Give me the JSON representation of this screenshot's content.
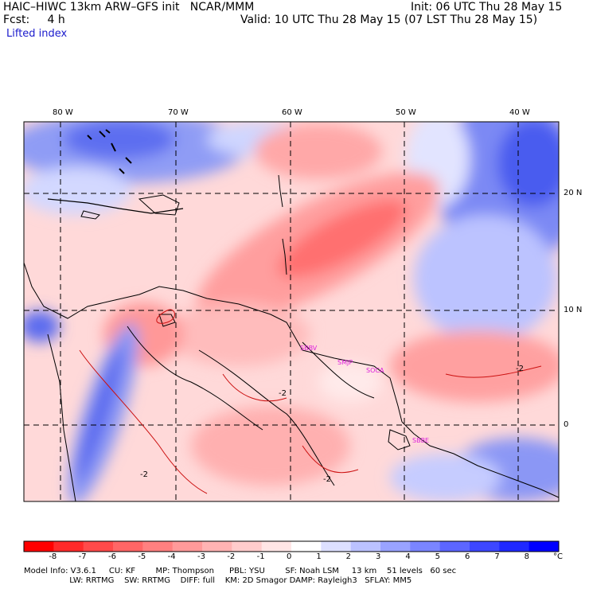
{
  "header": {
    "title": "HAIC–HIWC 13km ARW–GFS init   NCAR/MMM",
    "init": "Init: 06 UTC Thu 28 May 15",
    "fcst": "Fcst:     4 h",
    "valid": "Valid: 10 UTC Thu 28 May 15 (07 LST Thu 28 May 15)",
    "field": "Lifted index"
  },
  "map": {
    "lon_labels": [
      "80 W",
      "70 W",
      "60 W",
      "50 W",
      "40 W"
    ],
    "lat_labels": [
      "20 N",
      "10 N",
      "0"
    ],
    "contour_labels": [
      "-2",
      "-2",
      "-2",
      "-2"
    ],
    "stations": [
      "SBBV",
      "SMJP",
      "SOCA",
      "SBBE"
    ]
  },
  "colorbar": {
    "labels": [
      "-8",
      "-7",
      "-6",
      "-5",
      "-4",
      "-3",
      "-2",
      "-1",
      "0",
      "1",
      "2",
      "3",
      "4",
      "5",
      "6",
      "7",
      "8"
    ],
    "unit": "°C",
    "colors": [
      "#ff0000",
      "#ff2a2a",
      "#ff4a4a",
      "#ff6666",
      "#ff8080",
      "#ff9a9a",
      "#ffb3b3",
      "#ffcccc",
      "#ffe6e6",
      "#ffffff",
      "#dde0ff",
      "#bbc2ff",
      "#99a3ff",
      "#7a85ff",
      "#5c66ff",
      "#3d47ff",
      "#1f29ff",
      "#0000ff"
    ]
  },
  "model_info": {
    "line1": "Model Info: V3.6.1     CU: KF        MP: Thompson      PBL: YSU        SF: Noah LSM     13 km    51 levels   60 sec",
    "line2": "                  LW: RRTMG    SW: RRTMG    DIFF: full    KM: 2D Smagor DAMP: Rayleigh3   SFLAY: MM5"
  }
}
